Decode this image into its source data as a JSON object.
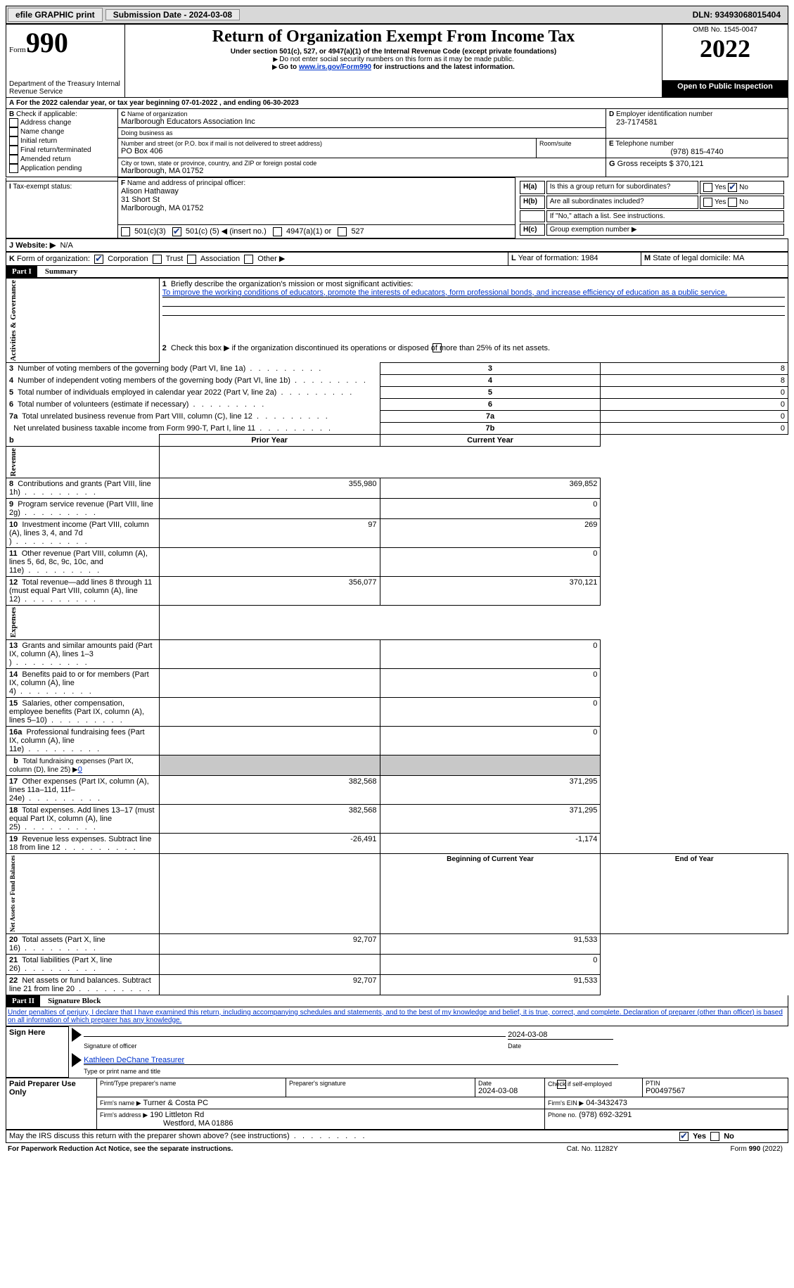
{
  "topbar": {
    "efile": "efile GRAPHIC print",
    "submission_label": "Submission Date - 2024-03-08",
    "dln": "DLN: 93493068015404"
  },
  "header": {
    "form_word": "Form",
    "form_num": "990",
    "title": "Return of Organization Exempt From Income Tax",
    "subtitle": "Under section 501(c), 527, or 4947(a)(1) of the Internal Revenue Code (except private foundations)",
    "note1": "Do not enter social security numbers on this form as it may be made public.",
    "note2_pre": "Go to ",
    "note2_link": "www.irs.gov/Form990",
    "note2_post": " for instructions and the latest information.",
    "dept": "Department of the Treasury\nInternal Revenue Service",
    "omb": "OMB No. 1545-0047",
    "year": "2022",
    "open": "Open to Public Inspection"
  },
  "A": {
    "text_pre": "For the 2022 calendar year, or tax year beginning ",
    "begin": "07-01-2022",
    "mid": " , and ending ",
    "end": "06-30-2023"
  },
  "B": {
    "label": "Check if applicable:",
    "opts": [
      "Address change",
      "Name change",
      "Initial return",
      "Final return/terminated",
      "Amended return",
      "Application pending"
    ]
  },
  "C": {
    "name_label": "Name of organization",
    "name": "Marlborough Educators Association Inc",
    "dba_label": "Doing business as",
    "dba": "",
    "addr_label": "Number and street (or P.O. box if mail is not delivered to street address)",
    "room_label": "Room/suite",
    "addr": "PO Box 406",
    "city_label": "City or town, state or province, country, and ZIP or foreign postal code",
    "city": "Marlborough, MA  01752"
  },
  "D": {
    "label": "Employer identification number",
    "value": "23-7174581"
  },
  "E": {
    "label": "Telephone number",
    "value": "(978) 815-4740"
  },
  "G": {
    "label": "Gross receipts $",
    "value": "370,121"
  },
  "F": {
    "label": "Name and address of principal officer:",
    "name": "Alison Hathaway",
    "street": "31 Short St",
    "csz": "Marlborough, MA  01752"
  },
  "H": {
    "a": "Is this a group return for subordinates?",
    "b": "Are all subordinates included?",
    "b_note": "If \"No,\" attach a list. See instructions.",
    "c": "Group exemption number ▶",
    "yes": "Yes",
    "no": "No"
  },
  "I": {
    "label": "Tax-exempt status:",
    "o1": "501(c)(3)",
    "o2_pre": "501(c) (",
    "o2_num": "5",
    "o2_post": ") ◀ (insert no.)",
    "o3": "4947(a)(1) or",
    "o4": "527"
  },
  "J": {
    "label": "Website: ▶",
    "value": "N/A"
  },
  "K": {
    "label": "Form of organization:",
    "o1": "Corporation",
    "o2": "Trust",
    "o3": "Association",
    "o4": "Other ▶"
  },
  "L": {
    "label": "Year of formation:",
    "value": "1984"
  },
  "M": {
    "label": "State of legal domicile:",
    "value": "MA"
  },
  "parts": {
    "p1": "Part I",
    "p1t": "Summary",
    "p2": "Part II",
    "p2t": "Signature Block"
  },
  "sidebars": {
    "act": "Activities & Governance",
    "rev": "Revenue",
    "exp": "Expenses",
    "net": "Net Assets or Fund Balances"
  },
  "summary": {
    "l1_label": "Briefly describe the organization's mission or most significant activities:",
    "l1_text": "To improve the working conditions of educators, promote the interests of educators, form professional bonds, and increase efficiency of education as a public service.",
    "l2": "Check this box ▶        if the organization discontinued its operations or disposed of more than 25% of its net assets.",
    "lines": [
      {
        "n": "3",
        "t": "Number of voting members of the governing body (Part VI, line 1a)",
        "box": "3",
        "v": "8"
      },
      {
        "n": "4",
        "t": "Number of independent voting members of the governing body (Part VI, line 1b)",
        "box": "4",
        "v": "8"
      },
      {
        "n": "5",
        "t": "Total number of individuals employed in calendar year 2022 (Part V, line 2a)",
        "box": "5",
        "v": "0"
      },
      {
        "n": "6",
        "t": "Total number of volunteers (estimate if necessary)",
        "box": "6",
        "v": "0"
      },
      {
        "n": "7a",
        "t": "Total unrelated business revenue from Part VIII, column (C), line 12",
        "box": "7a",
        "v": "0"
      },
      {
        "n": "",
        "t": "Net unrelated business taxable income from Form 990-T, Part I, line 11",
        "box": "7b",
        "v": "0"
      }
    ],
    "col_prior": "Prior Year",
    "col_current": "Current Year",
    "rev": [
      {
        "n": "8",
        "t": "Contributions and grants (Part VIII, line 1h)",
        "p": "355,980",
        "c": "369,852"
      },
      {
        "n": "9",
        "t": "Program service revenue (Part VIII, line 2g)",
        "p": "",
        "c": "0"
      },
      {
        "n": "10",
        "t": "Investment income (Part VIII, column (A), lines 3, 4, and 7d )",
        "p": "97",
        "c": "269"
      },
      {
        "n": "11",
        "t": "Other revenue (Part VIII, column (A), lines 5, 6d, 8c, 9c, 10c, and 11e)",
        "p": "",
        "c": "0"
      },
      {
        "n": "12",
        "t": "Total revenue—add lines 8 through 11 (must equal Part VIII, column (A), line 12)",
        "p": "356,077",
        "c": "370,121"
      }
    ],
    "exp": [
      {
        "n": "13",
        "t": "Grants and similar amounts paid (Part IX, column (A), lines 1–3 )",
        "p": "",
        "c": "0"
      },
      {
        "n": "14",
        "t": "Benefits paid to or for members (Part IX, column (A), line 4)",
        "p": "",
        "c": "0"
      },
      {
        "n": "15",
        "t": "Salaries, other compensation, employee benefits (Part IX, column (A), lines 5–10)",
        "p": "",
        "c": "0"
      },
      {
        "n": "16a",
        "t": "Professional fundraising fees (Part IX, column (A), line 11e)",
        "p": "",
        "c": "0"
      }
    ],
    "l16b_pre": "Total fundraising expenses (Part IX, column (D), line 25) ▶",
    "l16b_val": "0",
    "exp2": [
      {
        "n": "17",
        "t": "Other expenses (Part IX, column (A), lines 11a–11d, 11f–24e)",
        "p": "382,568",
        "c": "371,295"
      },
      {
        "n": "18",
        "t": "Total expenses. Add lines 13–17 (must equal Part IX, column (A), line 25)",
        "p": "382,568",
        "c": "371,295"
      },
      {
        "n": "19",
        "t": "Revenue less expenses. Subtract line 18 from line 12",
        "p": "-26,491",
        "c": "-1,174"
      }
    ],
    "col_begin": "Beginning of Current Year",
    "col_end": "End of Year",
    "net": [
      {
        "n": "20",
        "t": "Total assets (Part X, line 16)",
        "p": "92,707",
        "c": "91,533"
      },
      {
        "n": "21",
        "t": "Total liabilities (Part X, line 26)",
        "p": "",
        "c": "0"
      },
      {
        "n": "22",
        "t": "Net assets or fund balances. Subtract line 21 from line 20",
        "p": "92,707",
        "c": "91,533"
      }
    ]
  },
  "sig": {
    "pen": "Under penalties of perjury, I declare that I have examined this return, including accompanying schedules and statements, and to the best of my knowledge and belief, it is true, correct, and complete. Declaration of preparer (other than officer) is based on all information of which preparer has any knowledge.",
    "sign_here": "Sign Here",
    "sig_officer": "Signature of officer",
    "date_label": "Date",
    "date": "2024-03-08",
    "name_title": "Kathleen DeChane Treasurer",
    "type_name": "Type or print name and title",
    "paid": "Paid Preparer Use Only",
    "prep_name_label": "Print/Type preparer's name",
    "prep_sig_label": "Preparer's signature",
    "prep_date_label": "Date",
    "prep_date": "2024-03-08",
    "check_self": "Check        if self-employed",
    "ptin_label": "PTIN",
    "ptin": "P00497567",
    "firm_name_label": "Firm's name    ▶",
    "firm_name": "Turner & Costa PC",
    "firm_ein_label": "Firm's EIN ▶",
    "firm_ein": "04-3432473",
    "firm_addr_label": "Firm's address ▶",
    "firm_addr1": "190 Littleton Rd",
    "firm_addr2": "Westford, MA  01886",
    "phone_label": "Phone no.",
    "phone": "(978) 692-3291",
    "may_irs": "May the IRS discuss this return with the preparer shown above? (see instructions)",
    "paperwork": "For Paperwork Reduction Act Notice, see the separate instructions.",
    "cat": "Cat. No. 11282Y",
    "formfoot": "Form 990 (2022)"
  },
  "colors": {
    "link": "#0033cc",
    "shade": "#c8c8c8"
  }
}
